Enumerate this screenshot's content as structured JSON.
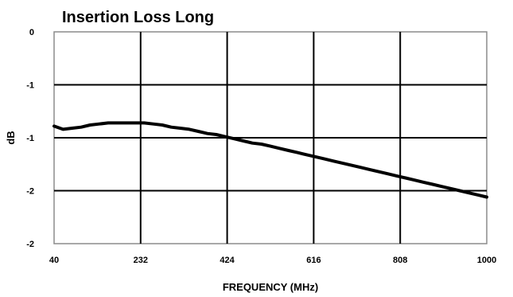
{
  "chart_data": {
    "type": "line",
    "title": "Insertion Loss Long",
    "xlabel": "FREQUENCY (MHz)",
    "ylabel": "dB",
    "xlim": [
      40,
      1000
    ],
    "ylim": [
      -2,
      0
    ],
    "x_ticks": [
      40,
      232,
      424,
      616,
      808,
      1000
    ],
    "y_tick_values": [
      0,
      -0.5,
      -1,
      -1.5,
      -2
    ],
    "y_tick_labels": [
      "0",
      "-1",
      "-1",
      "-2",
      "-2"
    ],
    "grid": true,
    "legend": "none",
    "series": [
      {
        "color": "#000000",
        "x": [
          40,
          60,
          80,
          100,
          120,
          140,
          160,
          180,
          200,
          220,
          240,
          260,
          280,
          300,
          320,
          340,
          360,
          380,
          400,
          420,
          440,
          460,
          480,
          500,
          520,
          540,
          560,
          580,
          600,
          620,
          640,
          660,
          680,
          700,
          720,
          740,
          760,
          780,
          800,
          820,
          840,
          860,
          880,
          900,
          920,
          940,
          960,
          980,
          1000
        ],
        "values": [
          -0.89,
          -0.92,
          -0.91,
          -0.9,
          -0.88,
          -0.87,
          -0.86,
          -0.86,
          -0.86,
          -0.86,
          -0.86,
          -0.87,
          -0.88,
          -0.9,
          -0.91,
          -0.92,
          -0.94,
          -0.96,
          -0.97,
          -0.99,
          -1.01,
          -1.03,
          -1.05,
          -1.06,
          -1.08,
          -1.1,
          -1.12,
          -1.14,
          -1.16,
          -1.18,
          -1.2,
          -1.22,
          -1.24,
          -1.26,
          -1.28,
          -1.3,
          -1.32,
          -1.34,
          -1.36,
          -1.38,
          -1.4,
          -1.42,
          -1.44,
          -1.46,
          -1.48,
          -1.5,
          -1.52,
          -1.54,
          -1.56
        ]
      }
    ]
  }
}
